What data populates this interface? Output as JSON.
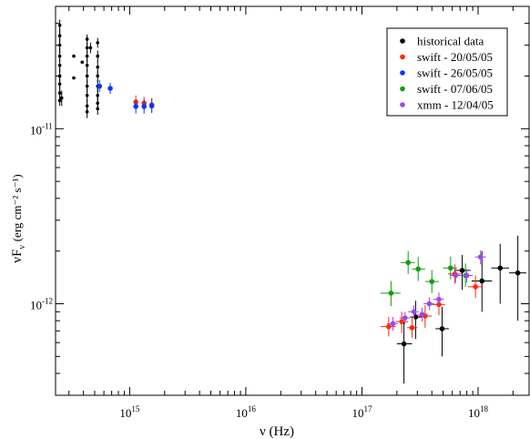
{
  "chart_data": {
    "type": "scatter",
    "title": "",
    "xlabel": "ν (Hz)",
    "ylabel": "νF",
    "ylabel_sub": "ν",
    "ylabel_units": "(erg cm⁻² s⁻¹)",
    "x_scale": "log",
    "y_scale": "log",
    "xlim": [
      230000000000000.0,
      2.75e+18
    ],
    "ylim": [
      3e-13,
      5e-11
    ],
    "x_ticks": [
      {
        "value": 1000000000000000.0,
        "base": "10",
        "exp": "15"
      },
      {
        "value": 1e+16,
        "base": "10",
        "exp": "16"
      },
      {
        "value": 1e+17,
        "base": "10",
        "exp": "17"
      },
      {
        "value": 1e+18,
        "base": "10",
        "exp": "18"
      }
    ],
    "y_ticks": [
      {
        "value": 1e-11,
        "base": "10",
        "exp": "-11"
      },
      {
        "value": 1e-12,
        "base": "10",
        "exp": "-12"
      }
    ],
    "grid": false,
    "legend_position": "top-right",
    "series": [
      {
        "name": "historical data",
        "color": "#000000",
        "points": [
          {
            "x": 250000000000000.0,
            "y": 3.9e-11,
            "ylo": 3.5e-11,
            "yhi": 4.2e-11
          },
          {
            "x": 250000000000000.0,
            "y": 3.4e-11,
            "ylo": 3.1e-11,
            "yhi": 3.7e-11
          },
          {
            "x": 250000000000000.0,
            "y": 3e-11,
            "ylo": 2.7e-11,
            "yhi": 3.3e-11
          },
          {
            "x": 250000000000000.0,
            "y": 2.6e-11,
            "ylo": 2.4e-11,
            "yhi": 2.9e-11
          },
          {
            "x": 250000000000000.0,
            "y": 2.3e-11,
            "ylo": 2.1e-11,
            "yhi": 2.5e-11
          },
          {
            "x": 250000000000000.0,
            "y": 2e-11,
            "ylo": 1.8e-11,
            "yhi": 2.2e-11
          },
          {
            "x": 250000000000000.0,
            "y": 1.8e-11,
            "ylo": 1.6e-11,
            "yhi": 2e-11
          },
          {
            "x": 250000000000000.0,
            "y": 1.6e-11,
            "ylo": 1.45e-11,
            "yhi": 1.75e-11
          },
          {
            "x": 250000000000000.0,
            "y": 1.45e-11,
            "ylo": 1.35e-11,
            "yhi": 1.6e-11
          },
          {
            "x": 260000000000000.0,
            "y": 1.5e-11,
            "ylo": 1.35e-11,
            "yhi": 1.65e-11
          },
          {
            "x": 330000000000000.0,
            "y": 2.6e-11
          },
          {
            "x": 330000000000000.0,
            "y": 1.95e-11
          },
          {
            "x": 390000000000000.0,
            "y": 2.4e-11
          },
          {
            "x": 430000000000000.0,
            "y": 3.25e-11,
            "ylo": 3e-11,
            "yhi": 3.45e-11
          },
          {
            "x": 430000000000000.0,
            "y": 2.9e-11,
            "ylo": 2.7e-11,
            "yhi": 3.1e-11
          },
          {
            "x": 430000000000000.0,
            "y": 2.6e-11,
            "ylo": 2.4e-11,
            "yhi": 2.8e-11
          },
          {
            "x": 430000000000000.0,
            "y": 2.3e-11,
            "ylo": 2.1e-11,
            "yhi": 2.5e-11
          },
          {
            "x": 430000000000000.0,
            "y": 2e-11,
            "ylo": 1.8e-11,
            "yhi": 2.2e-11
          },
          {
            "x": 430000000000000.0,
            "y": 1.75e-11,
            "ylo": 1.6e-11,
            "yhi": 1.9e-11
          },
          {
            "x": 430000000000000.0,
            "y": 1.55e-11,
            "ylo": 1.4e-11,
            "yhi": 1.7e-11
          },
          {
            "x": 430000000000000.0,
            "y": 1.35e-11,
            "ylo": 1.22e-11,
            "yhi": 1.48e-11
          },
          {
            "x": 430000000000000.0,
            "y": 1.25e-11,
            "ylo": 1.15e-11,
            "yhi": 1.37e-11
          },
          {
            "x": 460000000000000.0,
            "y": 2.9e-11,
            "ylo": 2.7e-11,
            "yhi": 3.1e-11
          },
          {
            "x": 530000000000000.0,
            "y": 3.1e-11,
            "ylo": 2.9e-11,
            "yhi": 3.3e-11
          },
          {
            "x": 530000000000000.0,
            "y": 2.6e-11,
            "ylo": 2.4e-11,
            "yhi": 2.8e-11
          },
          {
            "x": 530000000000000.0,
            "y": 2.25e-11,
            "ylo": 2.05e-11,
            "yhi": 2.45e-11
          },
          {
            "x": 530000000000000.0,
            "y": 2e-11,
            "ylo": 1.85e-11,
            "yhi": 2.15e-11
          },
          {
            "x": 530000000000000.0,
            "y": 1.75e-11,
            "ylo": 1.6e-11,
            "yhi": 1.9e-11
          },
          {
            "x": 530000000000000.0,
            "y": 1.55e-11,
            "ylo": 1.42e-11,
            "yhi": 1.7e-11
          },
          {
            "x": 530000000000000.0,
            "y": 1.4e-11,
            "ylo": 1.28e-11,
            "yhi": 1.52e-11
          },
          {
            "x": 530000000000000.0,
            "y": 1.3e-11,
            "ylo": 1.2e-11,
            "yhi": 1.42e-11
          },
          {
            "x": 2.3e+17,
            "y": 5.9e-13,
            "ylo": 3.5e-13,
            "yhi": 7.9e-13,
            "xlo": 2e+17,
            "xhi": 2.7e+17
          },
          {
            "x": 2.9e+17,
            "y": 8.4e-13,
            "ylo": 6.3e-13,
            "yhi": 1.04e-12,
            "xlo": 2.6e+17,
            "xhi": 3.3e+17
          },
          {
            "x": 4.9e+17,
            "y": 7.2e-13,
            "ylo": 5e-13,
            "yhi": 9.6e-13,
            "xlo": 4.3e+17,
            "xhi": 5.6e+17
          },
          {
            "x": 7.3e+17,
            "y": 1.55e-12,
            "ylo": 1.2e-12,
            "yhi": 1.9e-12,
            "xlo": 6.2e+17,
            "xhi": 8.6e+17
          },
          {
            "x": 1.08e+18,
            "y": 1.35e-12,
            "ylo": 9e-13,
            "yhi": 2e-12,
            "xlo": 8.8e+17,
            "xhi": 1.32e+18
          },
          {
            "x": 1.55e+18,
            "y": 1.6e-12,
            "ylo": 1e-12,
            "yhi": 2.2e-12,
            "xlo": 1.3e+18,
            "xhi": 1.85e+18
          },
          {
            "x": 2.2e+18,
            "y": 1.5e-12,
            "ylo": 8e-13,
            "yhi": 2.45e-12,
            "xlo": 1.85e+18,
            "xhi": 2.6e+18
          }
        ]
      },
      {
        "name": "swift - 20/05/05",
        "color": "#ff2a00",
        "points": [
          {
            "x": 1130000000000000.0,
            "y": 1.42e-11,
            "ylo": 1.3e-11,
            "yhi": 1.55e-11
          },
          {
            "x": 1330000000000000.0,
            "y": 1.4e-11,
            "ylo": 1.28e-11,
            "yhi": 1.52e-11
          },
          {
            "x": 1550000000000000.0,
            "y": 1.37e-11,
            "ylo": 1.25e-11,
            "yhi": 1.5e-11
          },
          {
            "x": 1.7e+17,
            "y": 7.4e-13,
            "ylo": 6.5e-13,
            "yhi": 8.4e-13,
            "xlo": 1.45e+17,
            "xhi": 1.95e+17
          },
          {
            "x": 2.2e+17,
            "y": 7.9e-13,
            "ylo": 6.8e-13,
            "yhi": 9e-13,
            "xlo": 1.95e+17,
            "xhi": 2.5e+17
          },
          {
            "x": 2.7e+17,
            "y": 7.3e-13,
            "ylo": 6.4e-13,
            "yhi": 8.3e-13,
            "xlo": 2.45e+17,
            "xhi": 3e+17
          },
          {
            "x": 3.5e+17,
            "y": 8.5e-13,
            "ylo": 7.3e-13,
            "yhi": 9.8e-13,
            "xlo": 3.05e+17,
            "xhi": 4e+17
          },
          {
            "x": 4.6e+17,
            "y": 9.9e-13,
            "ylo": 8.6e-13,
            "yhi": 1.14e-12,
            "xlo": 4e+17,
            "xhi": 5.2e+17
          },
          {
            "x": 6.3e+17,
            "y": 1.48e-12,
            "ylo": 1.3e-12,
            "yhi": 1.68e-12,
            "xlo": 5.5e+17,
            "xhi": 7.2e+17
          },
          {
            "x": 9.5e+17,
            "y": 1.25e-12,
            "ylo": 1.08e-12,
            "yhi": 1.45e-12,
            "xlo": 8.2e+17,
            "xhi": 1.1e+18
          }
        ]
      },
      {
        "name": "swift - 26/05/05",
        "color": "#0a35ff",
        "points": [
          {
            "x": 550000000000000.0,
            "y": 1.75e-11,
            "ylo": 1.62e-11,
            "yhi": 1.9e-11
          },
          {
            "x": 680000000000000.0,
            "y": 1.7e-11,
            "ylo": 1.58e-11,
            "yhi": 1.83e-11
          },
          {
            "x": 1130000000000000.0,
            "y": 1.34e-11,
            "ylo": 1.22e-11,
            "yhi": 1.47e-11
          },
          {
            "x": 1330000000000000.0,
            "y": 1.34e-11,
            "ylo": 1.22e-11,
            "yhi": 1.47e-11
          },
          {
            "x": 1550000000000000.0,
            "y": 1.35e-11,
            "ylo": 1.23e-11,
            "yhi": 1.48e-11
          }
        ]
      },
      {
        "name": "swift - 07/06/05",
        "color": "#0f9e0f",
        "points": [
          {
            "x": 1.78e+17,
            "y": 1.15e-12,
            "ylo": 9.7e-13,
            "yhi": 1.35e-12,
            "xlo": 1.45e+17,
            "xhi": 2.15e+17
          },
          {
            "x": 2.5e+17,
            "y": 1.72e-12,
            "ylo": 1.48e-12,
            "yhi": 2e-12,
            "xlo": 2.15e+17,
            "xhi": 2.85e+17
          },
          {
            "x": 3.05e+17,
            "y": 1.58e-12,
            "ylo": 1.35e-12,
            "yhi": 1.85e-12,
            "xlo": 2.7e+17,
            "xhi": 3.5e+17
          },
          {
            "x": 4e+17,
            "y": 1.34e-12,
            "ylo": 1.15e-12,
            "yhi": 1.56e-12,
            "xlo": 3.5e+17,
            "xhi": 4.6e+17
          },
          {
            "x": 5.8e+17,
            "y": 1.6e-12,
            "ylo": 1.38e-12,
            "yhi": 1.86e-12,
            "xlo": 5e+17,
            "xhi": 6.6e+17
          },
          {
            "x": 7.8e+17,
            "y": 1.45e-12,
            "ylo": 1.25e-12,
            "yhi": 1.7e-12,
            "xlo": 6.8e+17,
            "xhi": 9e+17
          }
        ]
      },
      {
        "name": "xmm - 12/04/05",
        "color": "#9a48e8",
        "points": [
          {
            "x": 1.85e+17,
            "y": 7.7e-13,
            "ylo": 7e-13,
            "yhi": 8.4e-13,
            "xlo": 1.65e+17,
            "xhi": 2.05e+17
          },
          {
            "x": 2.35e+17,
            "y": 8.3e-13,
            "ylo": 7.6e-13,
            "yhi": 9e-13,
            "xlo": 2.1e+17,
            "xhi": 2.6e+17
          },
          {
            "x": 2.8e+17,
            "y": 9e-13,
            "ylo": 8.2e-13,
            "yhi": 9.8e-13,
            "xlo": 2.5e+17,
            "xhi": 3.1e+17
          },
          {
            "x": 3.3e+17,
            "y": 8.7e-13,
            "ylo": 7.9e-13,
            "yhi": 9.5e-13,
            "xlo": 3e+17,
            "xhi": 3.7e+17
          },
          {
            "x": 3.8e+17,
            "y": 1e-12,
            "ylo": 9.2e-13,
            "yhi": 1.09e-12,
            "xlo": 3.4e+17,
            "xhi": 4.2e+17
          },
          {
            "x": 4.6e+17,
            "y": 1.06e-12,
            "ylo": 9.7e-13,
            "yhi": 1.16e-12,
            "xlo": 4.1e+17,
            "xhi": 5.1e+17
          },
          {
            "x": 6.4e+17,
            "y": 1.45e-12,
            "ylo": 1.32e-12,
            "yhi": 1.58e-12,
            "xlo": 5.7e+17,
            "xhi": 7.2e+17
          },
          {
            "x": 8e+17,
            "y": 1.45e-12,
            "ylo": 1.32e-12,
            "yhi": 1.58e-12,
            "xlo": 7.2e+17,
            "xhi": 8.9e+17
          },
          {
            "x": 1.05e+18,
            "y": 1.85e-12,
            "ylo": 1.68e-12,
            "yhi": 2.02e-12,
            "xlo": 9.4e+17,
            "xhi": 1.17e+18
          }
        ]
      }
    ]
  }
}
